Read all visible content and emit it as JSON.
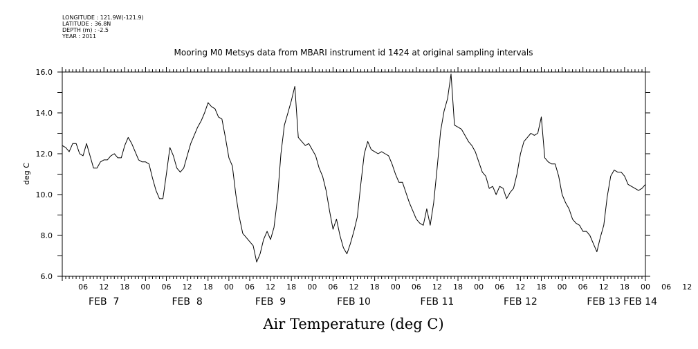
{
  "header": {
    "longitude": "LONGITUDE : 121.9W(-121.9)",
    "latitude": "LATITUDE : 36.8N",
    "depth": "DEPTH (m) : -2.5",
    "year": "YEAR : 2011"
  },
  "chart_data": {
    "type": "line",
    "title": "Mooring M0 Metsys data from MBARI instrument id 1424 at original sampling intervals",
    "ylabel": "deg C",
    "xlabel": "Air Temperature (deg C)",
    "ylim": [
      6.0,
      16.0
    ],
    "yticks": [
      "6.0",
      "8.0",
      "10.0",
      "12.0",
      "14.0",
      "16.0"
    ],
    "xlim_hours": [
      0,
      168
    ],
    "hour_tick_labels": [
      "06",
      "12",
      "18",
      "00",
      "06",
      "12",
      "18",
      "00",
      "06",
      "12",
      "18",
      "00",
      "06",
      "12",
      "18",
      "00",
      "06",
      "12",
      "18",
      "00",
      "06",
      "12",
      "18",
      "00",
      "06",
      "12",
      "18",
      "00",
      "06",
      "12",
      "18",
      "00"
    ],
    "day_labels": [
      "FEB  7",
      "FEB  8",
      "FEB  9",
      "FEB 10",
      "FEB 11",
      "FEB 12",
      "FEB 13",
      "FEB 14"
    ],
    "x_time_start": "FEB 7 2011 00:00",
    "series": [
      {
        "x": [
          0,
          1,
          2,
          3,
          4,
          5,
          6,
          7,
          8,
          9,
          10,
          11,
          12,
          13,
          14,
          15,
          16,
          17,
          18,
          19,
          20,
          21,
          22,
          23,
          24,
          25,
          26,
          27,
          28,
          29,
          30,
          31,
          32,
          33,
          34,
          35,
          36,
          37,
          38,
          39,
          40,
          41,
          42,
          43,
          44,
          45,
          46,
          47,
          48,
          49,
          50,
          51,
          52,
          53,
          54,
          55,
          56,
          57,
          58,
          59,
          60,
          61,
          62,
          63,
          64,
          65,
          66,
          67,
          68,
          69,
          70,
          71,
          72,
          73,
          74,
          75,
          76,
          77,
          78,
          79,
          80,
          81,
          82,
          83,
          84,
          85,
          86,
          87,
          88,
          89,
          90,
          91,
          92,
          93,
          94,
          95,
          96,
          97,
          98,
          99,
          100,
          101,
          102,
          103,
          104,
          105,
          106,
          107,
          108,
          109,
          110,
          111,
          112,
          113,
          114,
          115,
          116,
          117,
          118,
          119,
          120,
          121,
          122,
          123,
          124,
          125,
          126,
          127,
          128,
          129,
          130,
          131,
          132,
          133,
          134,
          135,
          136,
          137,
          138,
          139,
          140,
          141,
          142,
          143,
          144,
          145,
          146,
          147,
          148,
          149,
          150,
          151,
          152,
          153,
          154,
          155,
          156,
          157,
          158,
          159,
          160,
          161,
          162,
          163,
          164,
          165,
          166,
          167,
          168
        ],
        "y": [
          12.4,
          12.3,
          12.1,
          12.5,
          12.5,
          12.0,
          11.9,
          12.5,
          11.9,
          11.3,
          11.3,
          11.6,
          11.7,
          11.7,
          11.9,
          12.0,
          11.8,
          11.8,
          12.4,
          12.8,
          12.5,
          12.1,
          11.7,
          11.6,
          11.6,
          11.5,
          10.8,
          10.2,
          9.8,
          9.8,
          11.0,
          12.3,
          11.9,
          11.3,
          11.1,
          11.3,
          11.9,
          12.5,
          12.9,
          13.3,
          13.6,
          14.0,
          14.5,
          14.3,
          14.2,
          13.8,
          13.7,
          12.8,
          11.8,
          11.4,
          10.0,
          8.9,
          8.1,
          7.9,
          7.7,
          7.5,
          6.7,
          7.1,
          7.8,
          8.2,
          7.8,
          8.4,
          9.8,
          12.0,
          13.4,
          14.0,
          14.6,
          15.3,
          12.8,
          12.6,
          12.4,
          12.5,
          12.2,
          11.9,
          11.3,
          10.9,
          10.2,
          9.2,
          8.3,
          8.8,
          8.0,
          7.4,
          7.1,
          7.6,
          8.2,
          8.9,
          10.5,
          12.0,
          12.6,
          12.2,
          12.1,
          12.0,
          12.1,
          12.0,
          11.9,
          11.5,
          11.0,
          10.6,
          10.6,
          10.1,
          9.6,
          9.2,
          8.8,
          8.6,
          8.5,
          9.3,
          8.5,
          9.6,
          11.3,
          13.1,
          14.1,
          14.7,
          15.9,
          13.4,
          13.3,
          13.2,
          12.9,
          12.6,
          12.4,
          12.1,
          11.6,
          11.1,
          10.9,
          10.3,
          10.4,
          10.0,
          10.4,
          10.3,
          9.8,
          10.1,
          10.3,
          11.0,
          12.0,
          12.6,
          12.8,
          13.0,
          12.9,
          13.0,
          13.8,
          11.8,
          11.6,
          11.5,
          11.5,
          10.9,
          10.0,
          9.6,
          9.3,
          8.8,
          8.6,
          8.5,
          8.2,
          8.2,
          8.0,
          7.6,
          7.2,
          7.9,
          8.5,
          9.9,
          10.9,
          11.2,
          11.1,
          11.1,
          10.9,
          10.5,
          10.4,
          10.3,
          10.2,
          10.3,
          10.5
        ]
      }
    ]
  }
}
